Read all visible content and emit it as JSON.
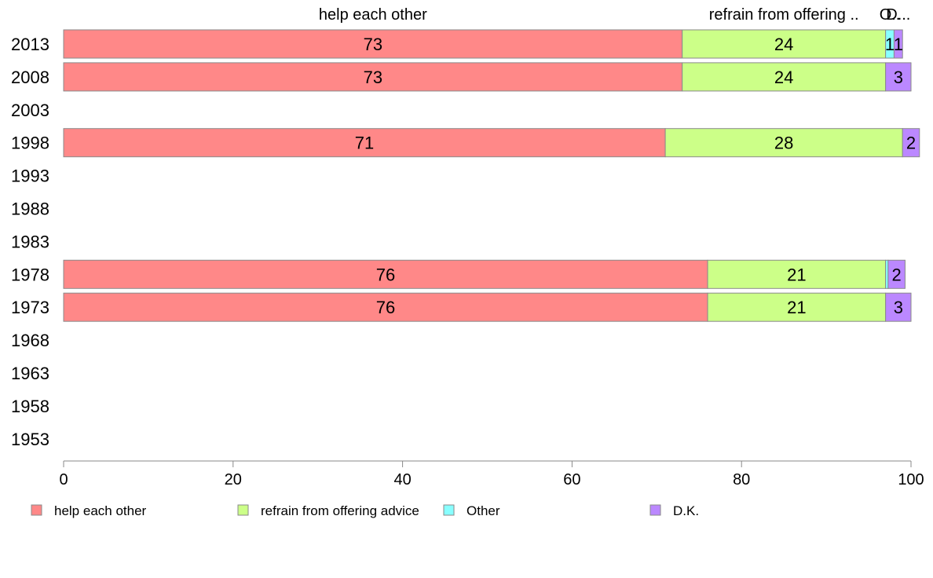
{
  "chart_data": {
    "type": "bar",
    "orientation": "horizontal",
    "stacked": true,
    "title": "",
    "xlabel": "",
    "ylabel": "",
    "xlim": [
      0,
      100
    ],
    "x_ticks": [
      "0",
      "20",
      "40",
      "60",
      "80",
      "100"
    ],
    "categories": [
      "2013",
      "2008",
      "2003",
      "1998",
      "1993",
      "1988",
      "1983",
      "1978",
      "1973",
      "1968",
      "1963",
      "1958",
      "1953"
    ],
    "series": [
      {
        "name": "help each other",
        "color": "#ff8888",
        "values": [
          73,
          73,
          null,
          71,
          null,
          null,
          null,
          76,
          76,
          null,
          null,
          null,
          null
        ]
      },
      {
        "name": "refrain from offering advice",
        "color": "#ccff88",
        "values": [
          24,
          24,
          null,
          28,
          null,
          null,
          null,
          21,
          21,
          null,
          null,
          null,
          null
        ]
      },
      {
        "name": "Other",
        "color": "#88ffff",
        "values": [
          1,
          0,
          null,
          0,
          null,
          null,
          null,
          0.3,
          0,
          null,
          null,
          null,
          null
        ]
      },
      {
        "name": "D.K.",
        "color": "#bb88ff",
        "values": [
          1,
          3,
          null,
          2,
          null,
          null,
          null,
          2,
          3,
          null,
          null,
          null,
          null
        ]
      }
    ],
    "data_labels": [
      [
        "73",
        "24",
        "1",
        "1"
      ],
      [
        "73",
        "24",
        "",
        "3"
      ],
      [
        "",
        "",
        "",
        ""
      ],
      [
        "71",
        "28",
        "",
        "2"
      ],
      [
        "",
        "",
        "",
        ""
      ],
      [
        "",
        "",
        "",
        ""
      ],
      [
        "",
        "",
        "",
        ""
      ],
      [
        "76",
        "21",
        "",
        "2"
      ],
      [
        "76",
        "21",
        "",
        "3"
      ],
      [
        "",
        "",
        "",
        ""
      ],
      [
        "",
        "",
        "",
        ""
      ],
      [
        "",
        "",
        "",
        ""
      ],
      [
        "",
        "",
        "",
        ""
      ]
    ],
    "top_labels": [
      "help each other",
      "refrain from offering ..",
      "O..",
      "D..."
    ],
    "legend": {
      "position": "bottom",
      "entries": [
        "help each other",
        "refrain from offering advice",
        "Other",
        "D.K."
      ]
    },
    "grid": false
  }
}
